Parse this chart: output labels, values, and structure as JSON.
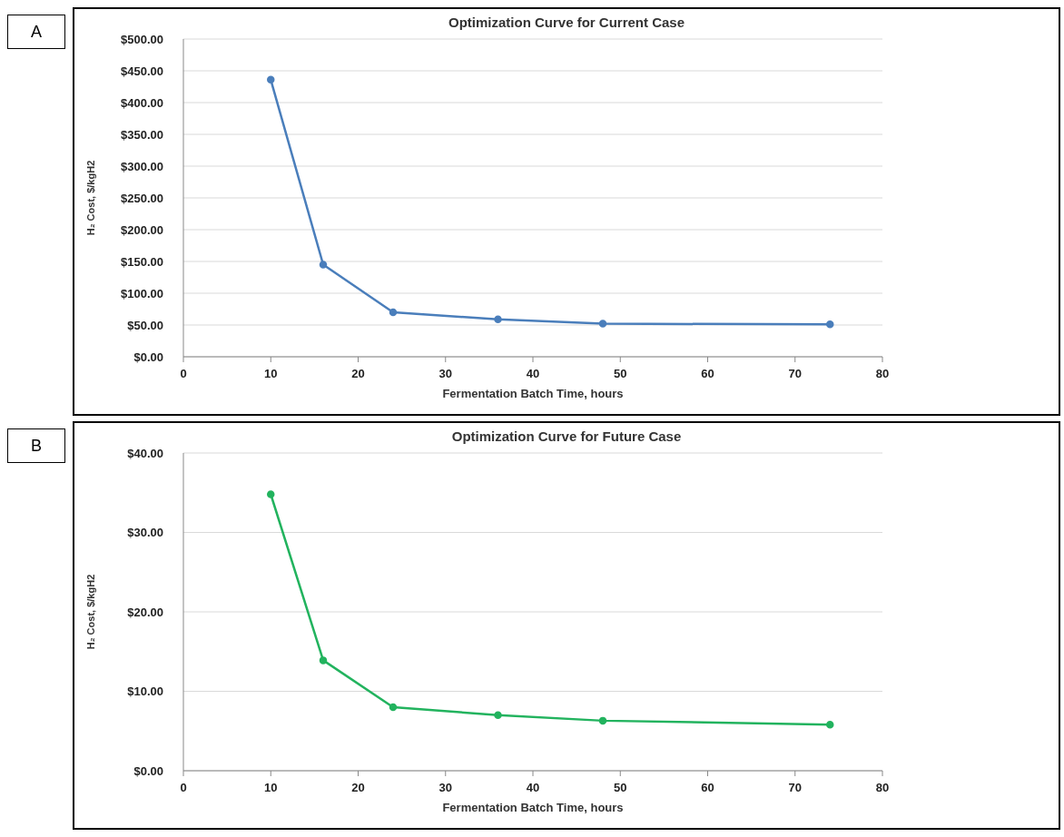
{
  "chart_data": [
    {
      "type": "line",
      "title": "Optimization Curve for Current Case",
      "xlabel": "Fermentation Batch Time, hours",
      "ylabel": "H₂ Cost, $/kgH2",
      "annotations": [
        "A"
      ],
      "x": [
        10,
        16,
        24,
        36,
        48,
        74
      ],
      "series": [
        {
          "color": "#4a7ebb",
          "values": [
            436,
            145,
            70,
            59,
            52,
            51
          ]
        }
      ],
      "xlim": [
        0,
        80
      ],
      "xticks": [
        0,
        10,
        20,
        30,
        40,
        50,
        60,
        70,
        80
      ],
      "ylim": [
        0,
        500
      ],
      "yticks": [
        {
          "value": 0,
          "label": "$0.00"
        },
        {
          "value": 50,
          "label": "$50.00"
        },
        {
          "value": 100,
          "label": "$100.00"
        },
        {
          "value": 150,
          "label": "$150.00"
        },
        {
          "value": 200,
          "label": "$200.00"
        },
        {
          "value": 250,
          "label": "$250.00"
        },
        {
          "value": 300,
          "label": "$300.00"
        },
        {
          "value": 350,
          "label": "$350.00"
        },
        {
          "value": 400,
          "label": "$400.00"
        },
        {
          "value": 450,
          "label": "$450.00"
        },
        {
          "value": 500,
          "label": "$500.00"
        }
      ],
      "grid": "y",
      "marker": "circle",
      "line_style": "solid"
    },
    {
      "type": "line",
      "title": "Optimization Curve for Future Case",
      "xlabel": "Fermentation Batch Time, hours",
      "ylabel": "H₂ Cost, $/kgH2",
      "annotations": [
        "B"
      ],
      "x": [
        10,
        16,
        24,
        36,
        48,
        74
      ],
      "series": [
        {
          "color": "#22b35e",
          "values": [
            34.8,
            13.9,
            8.0,
            7.0,
            6.3,
            5.8
          ]
        }
      ],
      "xlim": [
        0,
        80
      ],
      "xticks": [
        0,
        10,
        20,
        30,
        40,
        50,
        60,
        70,
        80
      ],
      "ylim": [
        0,
        40
      ],
      "yticks": [
        {
          "value": 0,
          "label": "$0.00"
        },
        {
          "value": 10,
          "label": "$10.00"
        },
        {
          "value": 20,
          "label": "$20.00"
        },
        {
          "value": 30,
          "label": "$30.00"
        },
        {
          "value": 40,
          "label": "$40.00"
        }
      ],
      "grid": "y",
      "marker": "circle",
      "line_style": "solid"
    }
  ]
}
